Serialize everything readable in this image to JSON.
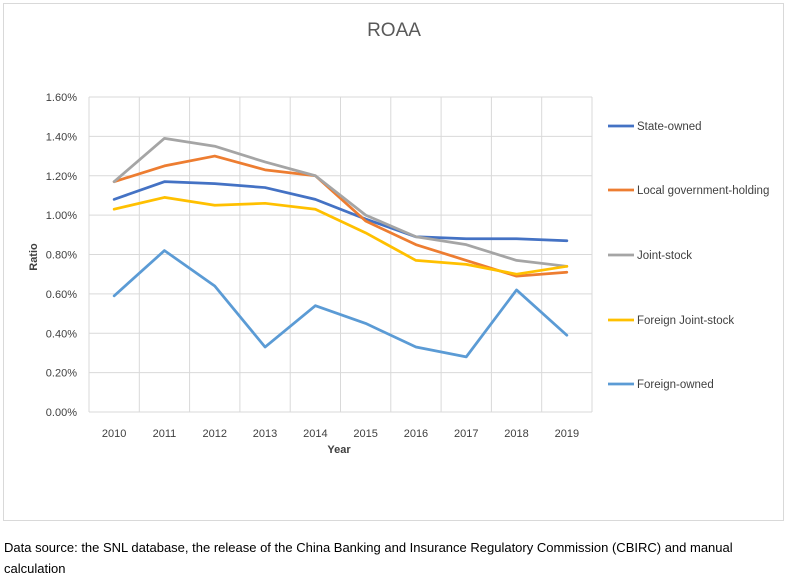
{
  "chart_data": {
    "type": "line",
    "title": "ROAA",
    "xlabel": "Year",
    "ylabel": "Ratio",
    "ylim": [
      0,
      1.6
    ],
    "y_ticks": [
      "0.00%",
      "0.20%",
      "0.40%",
      "0.60%",
      "0.80%",
      "1.00%",
      "1.20%",
      "1.40%",
      "1.60%"
    ],
    "y_tick_values": [
      0,
      0.2,
      0.4,
      0.6,
      0.8,
      1.0,
      1.2,
      1.4,
      1.6
    ],
    "categories": [
      "2010",
      "2011",
      "2012",
      "2013",
      "2014",
      "2015",
      "2016",
      "2017",
      "2018",
      "2019"
    ],
    "grid": "vertical-and-horizontal",
    "legend_position": "right",
    "series": [
      {
        "name": "State-owned",
        "color": "#4472c4",
        "values": [
          1.08,
          1.17,
          1.16,
          1.14,
          1.08,
          0.98,
          0.89,
          0.88,
          0.88,
          0.87
        ]
      },
      {
        "name": "Local government-holding",
        "color": "#ed7d31",
        "values": [
          1.17,
          1.25,
          1.3,
          1.23,
          1.2,
          0.97,
          0.85,
          0.77,
          0.69,
          0.71
        ]
      },
      {
        "name": "Joint-stock",
        "color": "#a5a5a5",
        "values": [
          1.17,
          1.39,
          1.35,
          1.27,
          1.2,
          1.0,
          0.89,
          0.85,
          0.77,
          0.74
        ]
      },
      {
        "name": "Foreign Joint-stock",
        "color": "#ffc000",
        "values": [
          1.03,
          1.09,
          1.05,
          1.06,
          1.03,
          0.91,
          0.77,
          0.75,
          0.7,
          0.74
        ]
      },
      {
        "name": "Foreign-owned",
        "color": "#5b9bd5",
        "values": [
          0.59,
          0.82,
          0.64,
          0.33,
          0.54,
          0.45,
          0.33,
          0.28,
          0.62,
          0.39
        ]
      }
    ]
  },
  "caption": "Data source: the SNL database, the release of the China Banking and Insurance Regulatory Commission (CBIRC) and manual calculation"
}
